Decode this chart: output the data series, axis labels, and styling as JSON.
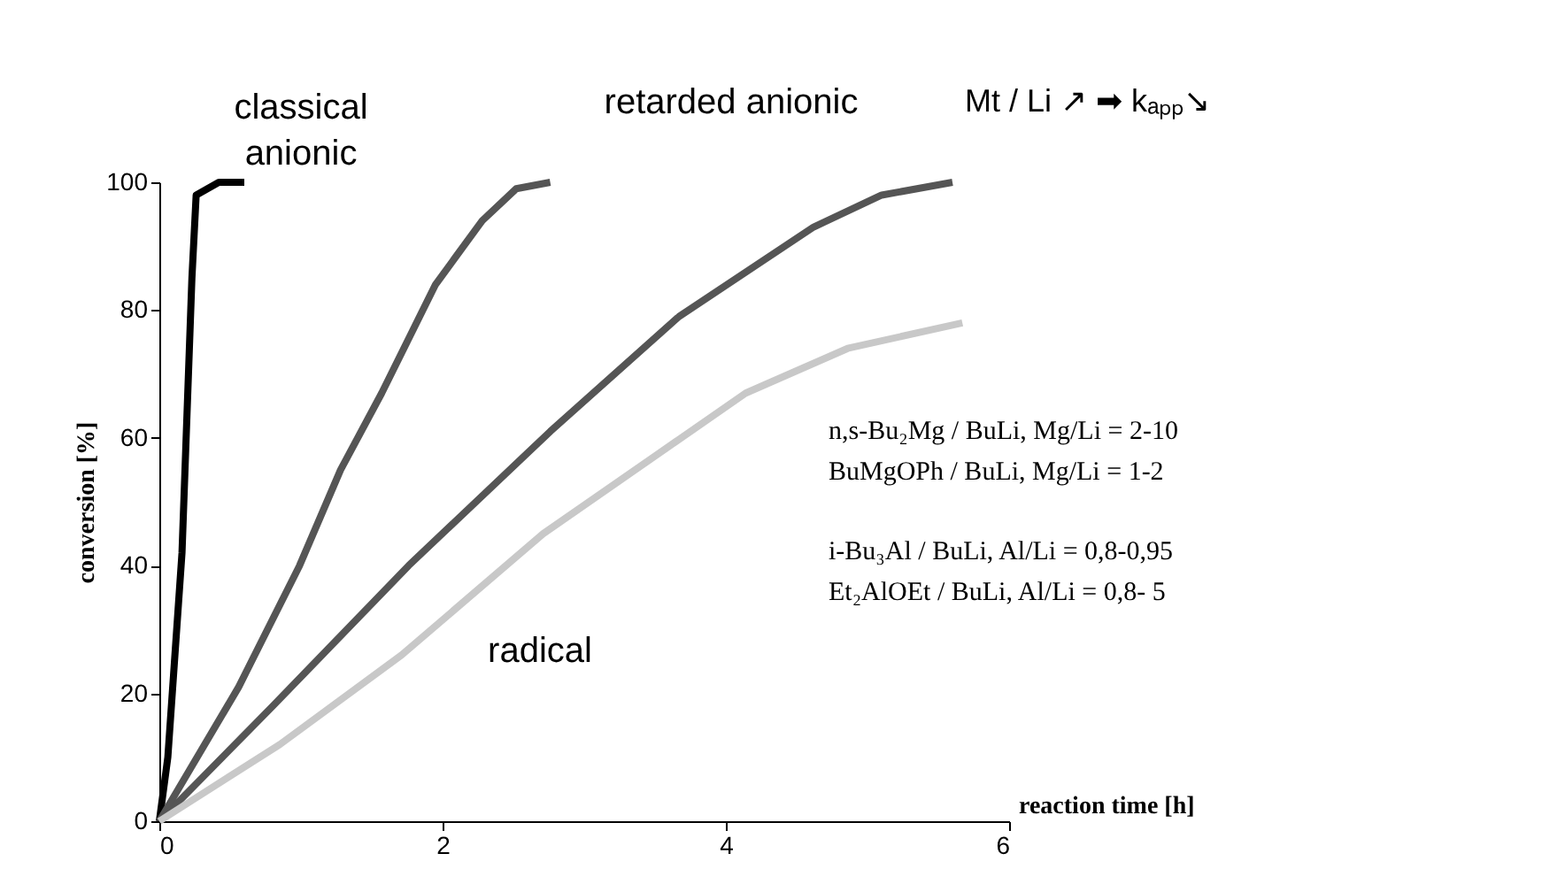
{
  "chart_data": {
    "type": "line",
    "xlabel": "reaction time [h]",
    "ylabel": "conversion [%]",
    "xlim": [
      0,
      6
    ],
    "xticks": [
      0,
      2,
      4,
      6
    ],
    "ylim": [
      0,
      100
    ],
    "yticks": [
      0,
      20,
      40,
      60,
      80,
      100
    ],
    "grid": false,
    "legend": false,
    "marker": "none",
    "line_style": "solid",
    "series": [
      {
        "color": "#000000",
        "x": [
          0,
          0.06,
          0.16,
          0.23,
          0.26,
          0.42,
          0.6
        ],
        "values": [
          0,
          10,
          42,
          85,
          98,
          100,
          100
        ]
      },
      {
        "color": "#555555",
        "x": [
          0,
          0.56,
          0.99,
          1.28,
          1.57,
          1.95,
          2.28,
          2.52,
          2.76
        ],
        "values": [
          0,
          21,
          40,
          55,
          67,
          84,
          94,
          99,
          100
        ]
      },
      {
        "color": "#555555",
        "x": [
          0,
          0.8,
          1.76,
          2.76,
          3.67,
          4.62,
          5.1,
          5.6
        ],
        "values": [
          0,
          18,
          40,
          61,
          79,
          93,
          98,
          100
        ]
      },
      {
        "color": "#c8c8c8",
        "x": [
          0,
          0.85,
          1.71,
          2.71,
          4.14,
          4.86,
          5.67
        ],
        "values": [
          0,
          12,
          26,
          45,
          67,
          74,
          78
        ]
      }
    ],
    "annotations": [
      "classical anionic",
      "retarded anionic",
      "Mt / Li ↗ ➡ kₐₚₚ↘",
      "radical",
      "n,s-Bu₂Mg / BuLi,    Mg/Li = 2-10",
      "BuMgOPh / BuLi,    Mg/Li = 1-2",
      "i-Bu₃Al / BuLi,       Al/Li = 0,8-0,95",
      "Et₂AlOEt / BuLi,    Al/Li = 0,8- 5"
    ]
  }
}
